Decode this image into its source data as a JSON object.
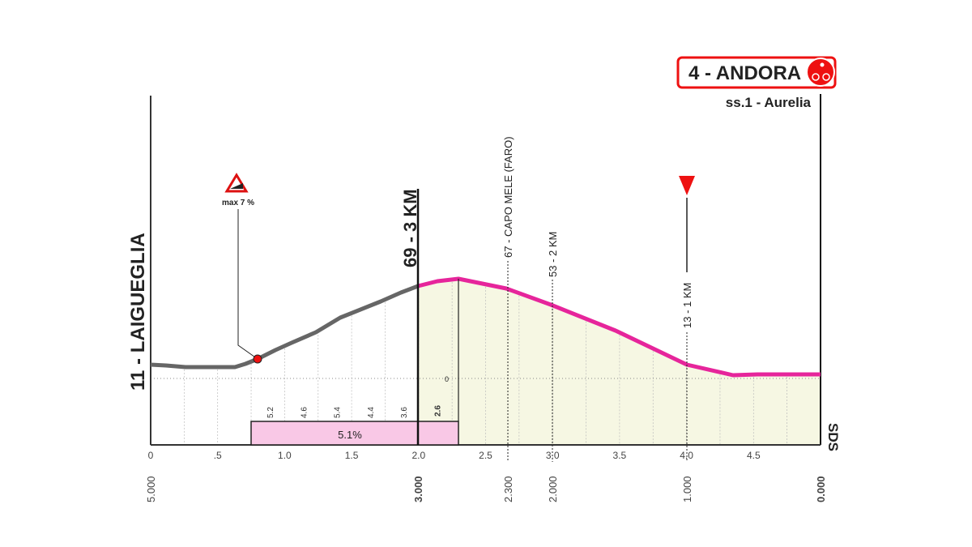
{
  "finish": {
    "label": "4 - ANDORA",
    "road": "ss.1 - Aurelia"
  },
  "start": "11 - LAIGUEGLIA",
  "climb": {
    "max_gradient": "max 7 %",
    "average": "5.1%",
    "segments": [
      "5.2",
      "4.6",
      "5.4",
      "4.4",
      "3.6",
      "2.6"
    ]
  },
  "markers": [
    "69 - 3 KM",
    "67 - CAPO MELE (FARO)",
    "53 - 2 KM",
    "13 - 1 KM"
  ],
  "zero_label": "0",
  "x_axis": [
    "0",
    ".5",
    "1.0",
    "1.5",
    "2.0",
    "2.5",
    "3.0",
    "3.5",
    "4.0",
    "4.5"
  ],
  "distance_labels": [
    "5.000",
    "3.000",
    "2.300",
    "2.000",
    "1.000",
    "0.000"
  ],
  "logo": "SDS"
}
